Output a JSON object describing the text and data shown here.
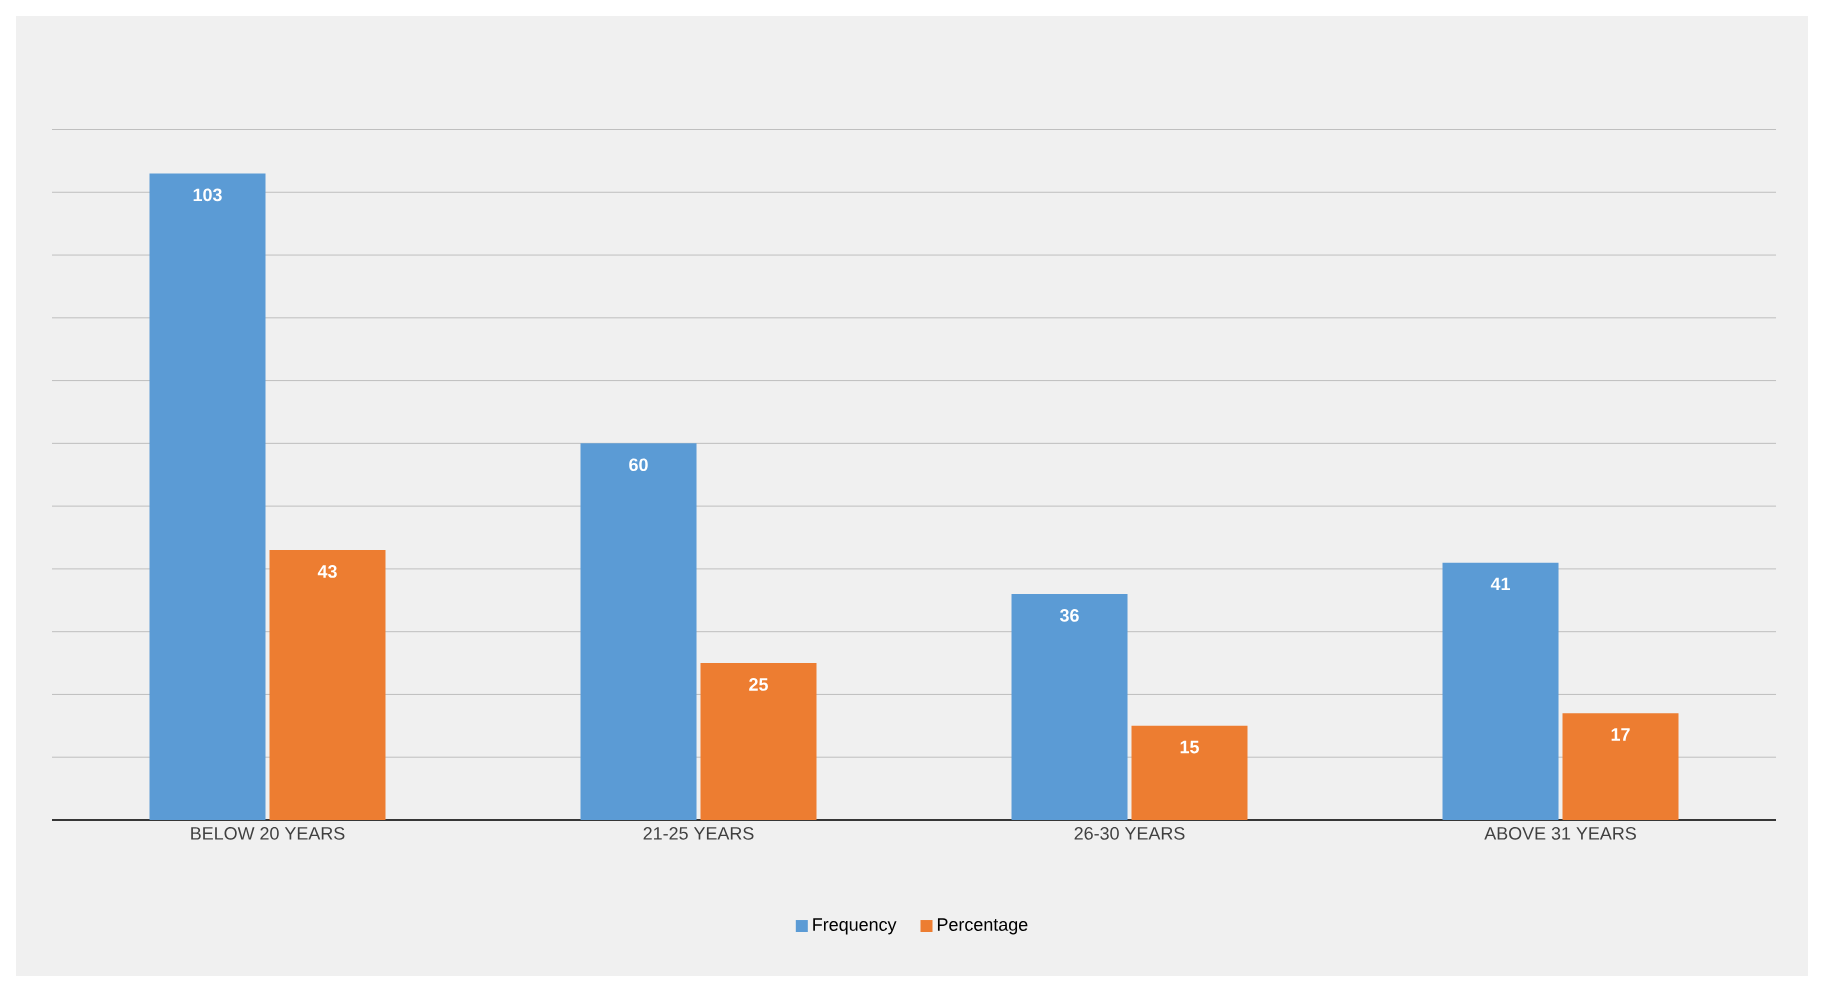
{
  "chart_data": {
    "type": "bar",
    "categories": [
      "BELOW 20 YEARS",
      "21-25 YEARS",
      "26-30 YEARS",
      "ABOVE 31 YEARS"
    ],
    "series": [
      {
        "name": "Frequency",
        "color": "#5b9bd5",
        "values": [
          103,
          60,
          36,
          41
        ]
      },
      {
        "name": "Percentage",
        "color": "#ed7d31",
        "values": [
          43,
          25,
          15,
          17
        ]
      }
    ],
    "tick_labels": "x",
    "grid": "y",
    "data_labels": true,
    "legend": "bottom"
  }
}
